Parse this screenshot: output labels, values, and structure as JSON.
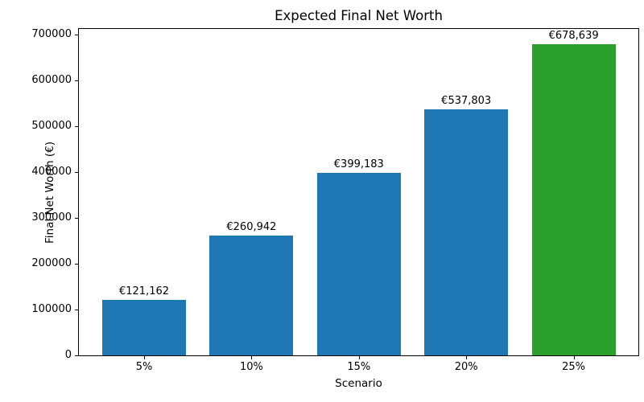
{
  "chart_data": {
    "type": "bar",
    "title": "Expected Final Net Worth",
    "xlabel": "Scenario",
    "ylabel": "Final Net Worth (€)",
    "categories": [
      "5%",
      "10%",
      "15%",
      "20%",
      "25%"
    ],
    "values": [
      121162,
      260942,
      399183,
      537803,
      678639
    ],
    "bar_labels": [
      "€121,162",
      "€260,942",
      "€399,183",
      "€537,803",
      "€678,639"
    ],
    "bar_colors": [
      "#1f77b4",
      "#1f77b4",
      "#1f77b4",
      "#1f77b4",
      "#2ca02c"
    ],
    "ylim": [
      0,
      712571
    ],
    "yticks": [
      0,
      100000,
      200000,
      300000,
      400000,
      500000,
      600000,
      700000
    ],
    "ytick_labels": [
      "0",
      "100000",
      "200000",
      "300000",
      "400000",
      "500000",
      "600000",
      "700000"
    ],
    "grid": false,
    "legend": "none"
  }
}
